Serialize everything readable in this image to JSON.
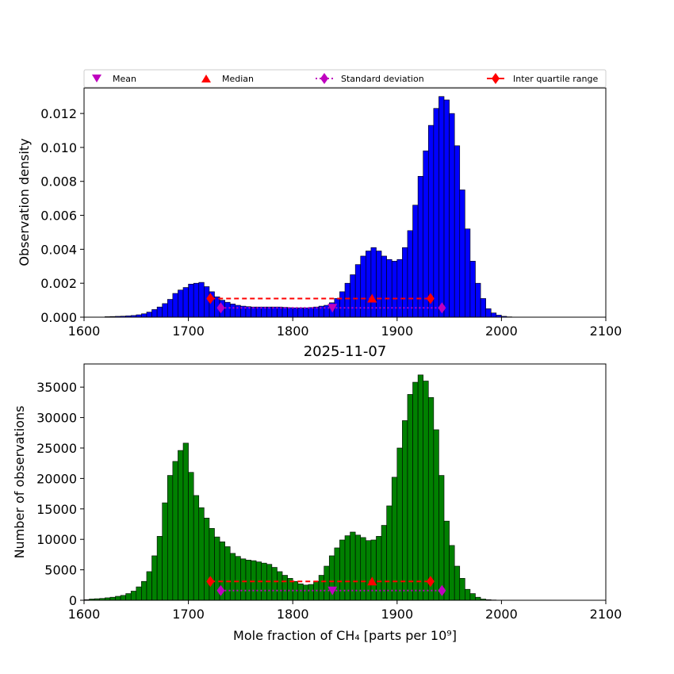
{
  "legend": {
    "mean": "Mean",
    "median": "Median",
    "std": "Standard deviation",
    "iqr": "Inter quartile range"
  },
  "colors": {
    "top_bars": "#0000ff",
    "bottom_bars": "#008000",
    "mean": "#bf00bf",
    "median": "#ff0000",
    "std": "#bf00bf",
    "iqr": "#ff0000"
  },
  "stats": {
    "mean": 1838,
    "median": 1876,
    "std_range": [
      1731,
      1943
    ],
    "iqr_range": [
      1721,
      1932
    ]
  },
  "chart_data": [
    {
      "type": "bar",
      "ylabel": "Observation density",
      "xlim": [
        1600,
        2100
      ],
      "ylim": [
        0,
        0.0135
      ],
      "x_ticks": [
        "1600",
        "1700",
        "1800",
        "1900",
        "2000",
        "2100"
      ],
      "y_ticks": [
        "0.000",
        "0.002",
        "0.004",
        "0.006",
        "0.008",
        "0.010",
        "0.012"
      ],
      "bin_start": 1600,
      "bin_width": 5,
      "values": [
        0,
        0,
        0,
        0,
        3e-05,
        4e-05,
        5e-05,
        6e-05,
        8e-05,
        0.0001,
        0.00014,
        0.0002,
        0.0003,
        0.00045,
        0.0006,
        0.0008,
        0.00105,
        0.0014,
        0.0016,
        0.00175,
        0.00195,
        0.002,
        0.00205,
        0.0018,
        0.0015,
        0.0012,
        0.001,
        0.00088,
        0.00078,
        0.0007,
        0.00065,
        0.00062,
        0.0006,
        0.0006,
        0.0006,
        0.0006,
        0.0006,
        0.0006,
        0.00058,
        0.00056,
        0.00055,
        0.00055,
        0.00055,
        0.00057,
        0.0006,
        0.00065,
        0.0007,
        0.00085,
        0.0011,
        0.0015,
        0.002,
        0.0025,
        0.0031,
        0.0036,
        0.0039,
        0.0041,
        0.0039,
        0.0036,
        0.0034,
        0.0033,
        0.0034,
        0.0041,
        0.0051,
        0.0066,
        0.0083,
        0.0098,
        0.0113,
        0.0123,
        0.013,
        0.0128,
        0.012,
        0.0101,
        0.0075,
        0.0052,
        0.0033,
        0.002,
        0.0011,
        0.0005,
        0.00025,
        0.00012,
        5e-05,
        2e-05,
        0,
        0,
        0,
        0,
        0,
        0,
        0,
        0,
        0,
        0,
        0,
        0,
        0,
        0,
        0,
        0,
        0,
        0
      ]
    },
    {
      "type": "bar",
      "title": "2025-11-07",
      "xlabel": "Mole fraction of CH₄ [parts per 10⁹]",
      "ylabel": "Number of observations",
      "xlim": [
        1600,
        2100
      ],
      "ylim": [
        0,
        38800
      ],
      "x_ticks": [
        "1600",
        "1700",
        "1800",
        "1900",
        "2000",
        "2100"
      ],
      "y_ticks": [
        "0",
        "5000",
        "10000",
        "15000",
        "20000",
        "25000",
        "30000",
        "35000"
      ],
      "bin_start": 1600,
      "bin_width": 5,
      "values": [
        100,
        200,
        250,
        300,
        400,
        500,
        650,
        800,
        1100,
        1500,
        2200,
        3100,
        4700,
        7300,
        10500,
        16000,
        20500,
        22800,
        24600,
        25800,
        21000,
        17200,
        15200,
        13500,
        11800,
        10400,
        9600,
        8800,
        7700,
        7200,
        6800,
        6600,
        6500,
        6300,
        6100,
        5900,
        5400,
        4700,
        4100,
        3600,
        3100,
        2700,
        2500,
        2600,
        3100,
        4100,
        5600,
        7300,
        8600,
        9900,
        10600,
        11200,
        10700,
        10300,
        9800,
        9900,
        10500,
        12300,
        15500,
        20200,
        25000,
        29500,
        33800,
        35800,
        37000,
        36000,
        33300,
        28000,
        20500,
        13000,
        9000,
        5600,
        3600,
        1800,
        1100,
        500,
        200,
        100,
        50,
        0,
        0,
        0,
        0,
        0,
        0,
        0,
        0,
        0,
        0,
        0,
        0,
        0,
        0,
        0,
        0,
        0,
        0,
        0,
        0,
        0
      ]
    }
  ]
}
